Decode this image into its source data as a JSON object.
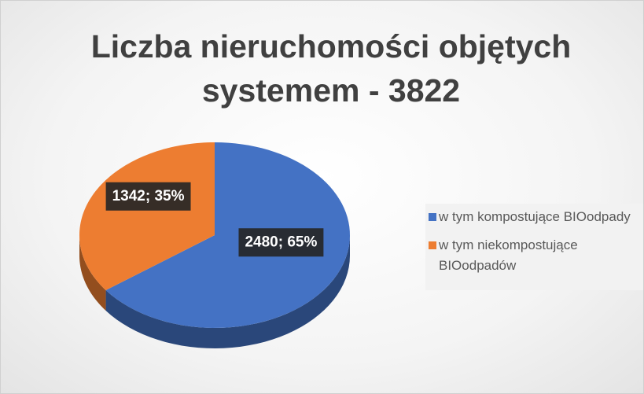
{
  "chart_data": {
    "type": "pie",
    "title": "Liczba nieruchomości objętych systemem - 3822",
    "categories": [
      "w tym kompostujące BIOodpady",
      "w tym niekompostujące BIOodpadów"
    ],
    "values": [
      2480,
      1342
    ],
    "value_labels": [
      "2480; 65%",
      "1342; 35%"
    ],
    "colors": [
      "#4472c4",
      "#ed7d31"
    ],
    "legend": "right"
  }
}
